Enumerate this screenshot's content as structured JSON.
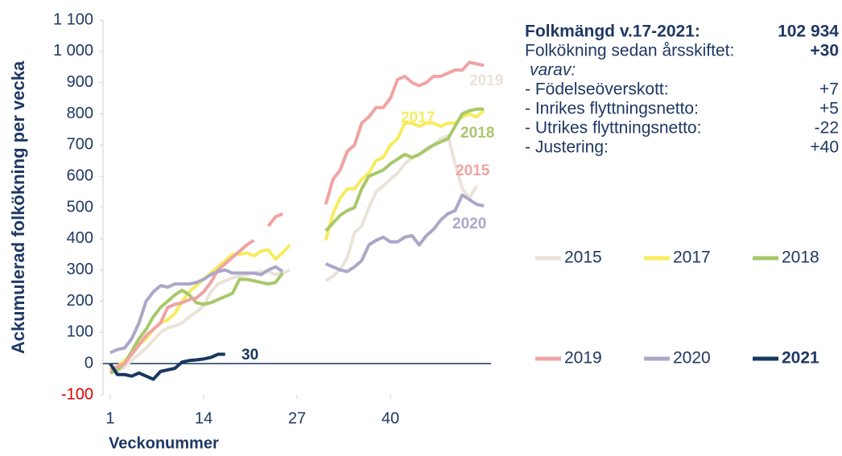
{
  "chart_data": {
    "type": "line",
    "y_label": "Ackumulerad folkökning per vecka",
    "x_label": "Veckonummer",
    "xlim": [
      0,
      54
    ],
    "ylim": [
      -100,
      1100
    ],
    "xticks": [
      1,
      14,
      27,
      40
    ],
    "yticks": [
      -100,
      0,
      100,
      200,
      300,
      400,
      500,
      600,
      700,
      800,
      900,
      {
        "value": 1000,
        "label": "1 000"
      },
      {
        "value": 1100,
        "label": "1 100"
      }
    ],
    "x": [
      1,
      2,
      3,
      4,
      5,
      6,
      7,
      8,
      9,
      10,
      11,
      12,
      13,
      14,
      15,
      16,
      17,
      18,
      19,
      20,
      21,
      22,
      23,
      24,
      25,
      26,
      27,
      28,
      29,
      30,
      31,
      32,
      33,
      34,
      35,
      36,
      37,
      38,
      39,
      40,
      41,
      42,
      43,
      44,
      45,
      46,
      47,
      48,
      49,
      50,
      51,
      52,
      53
    ],
    "series": [
      {
        "name": "2015",
        "color": "#ebe3d8",
        "values": [
          -30,
          -25,
          -10,
          10,
          30,
          50,
          75,
          100,
          115,
          120,
          130,
          150,
          165,
          185,
          230,
          255,
          265,
          275,
          280,
          285,
          290,
          295,
          295,
          285,
          290,
          300,
          null,
          null,
          null,
          null,
          265,
          280,
          300,
          340,
          420,
          440,
          500,
          550,
          570,
          590,
          610,
          640,
          660,
          670,
          690,
          700,
          720,
          730,
          640,
          560,
          530,
          570,
          null
        ]
      },
      {
        "name": "2017",
        "color": "#f6ec5e",
        "values": [
          -20,
          -10,
          10,
          30,
          60,
          80,
          110,
          130,
          140,
          160,
          200,
          230,
          250,
          270,
          290,
          310,
          330,
          350,
          350,
          355,
          345,
          360,
          365,
          335,
          355,
          380,
          null,
          null,
          null,
          null,
          395,
          480,
          530,
          560,
          560,
          590,
          610,
          650,
          660,
          700,
          720,
          770,
          770,
          760,
          770,
          770,
          760,
          770,
          770,
          790,
          800,
          790,
          810
        ]
      },
      {
        "name": "2018",
        "color": "#a8c86a",
        "values": [
          -30,
          -20,
          0,
          40,
          80,
          110,
          150,
          180,
          200,
          220,
          235,
          220,
          195,
          190,
          195,
          205,
          215,
          225,
          270,
          270,
          265,
          260,
          255,
          260,
          290,
          null,
          null,
          null,
          null,
          null,
          425,
          450,
          475,
          490,
          500,
          560,
          600,
          610,
          620,
          640,
          655,
          670,
          660,
          670,
          685,
          700,
          710,
          720,
          760,
          800,
          810,
          815,
          815
        ]
      },
      {
        "name": "2019",
        "color": "#f0a3a3",
        "values": [
          -20,
          -10,
          0,
          30,
          60,
          90,
          110,
          130,
          180,
          190,
          195,
          205,
          210,
          230,
          260,
          300,
          320,
          340,
          360,
          380,
          395,
          null,
          440,
          470,
          480,
          null,
          null,
          null,
          null,
          null,
          510,
          590,
          620,
          680,
          700,
          770,
          790,
          820,
          820,
          850,
          910,
          920,
          900,
          890,
          900,
          920,
          920,
          930,
          940,
          940,
          965,
          960,
          955
        ]
      },
      {
        "name": "2020",
        "color": "#aba7c9",
        "values": [
          35,
          45,
          50,
          80,
          130,
          200,
          230,
          250,
          245,
          255,
          255,
          255,
          260,
          270,
          285,
          295,
          300,
          290,
          290,
          290,
          290,
          285,
          300,
          310,
          295,
          null,
          null,
          null,
          null,
          null,
          320,
          310,
          300,
          295,
          310,
          330,
          380,
          395,
          405,
          390,
          390,
          405,
          410,
          380,
          410,
          430,
          460,
          480,
          490,
          540,
          525,
          510,
          505
        ]
      },
      {
        "name": "2021",
        "color": "#17375e",
        "values": [
          0,
          -35,
          -35,
          -40,
          -30,
          -40,
          -50,
          -25,
          -20,
          -15,
          5,
          10,
          12,
          15,
          20,
          30,
          30,
          null,
          null,
          null,
          null,
          null,
          null,
          null,
          null,
          null,
          null,
          null,
          null,
          null,
          null,
          null,
          null,
          null,
          null,
          null,
          null,
          null,
          null,
          null,
          null,
          null,
          null,
          null,
          null,
          null,
          null,
          null,
          null,
          null,
          null,
          null,
          null
        ]
      }
    ],
    "annotations": [
      "2019",
      "2017",
      "2018",
      "2015",
      "2020",
      "30"
    ],
    "info": {
      "title": "Folkmängd v.17-2021:",
      "title_value": "102 934",
      "subtitle": "Folkökning sedan årsskiftet:",
      "subtitle_value": "+30",
      "varav": "varav:",
      "rows": [
        [
          "- Födelseöverskott:",
          "+7"
        ],
        [
          "- Inrikes flyttningsnetto:",
          "+5"
        ],
        [
          "- Utrikes flyttningsnetto:",
          "-22"
        ],
        [
          "- Justering:",
          "+40"
        ]
      ]
    }
  }
}
